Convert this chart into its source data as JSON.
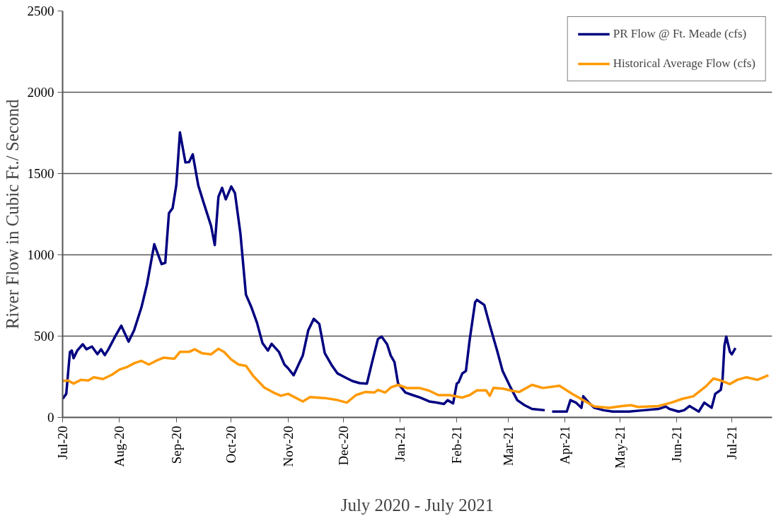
{
  "chart_data": {
    "type": "line",
    "xlabel": "July 2020 - July 2021",
    "ylabel": "River Flow in Cubic Ft./ Second",
    "xlim": [
      "2020-07-01",
      "2021-07-23"
    ],
    "ylim": [
      0,
      2500
    ],
    "yticks": [
      0,
      500,
      1000,
      1500,
      2000,
      2500
    ],
    "xticks": [
      {
        "value": "2020-07-01",
        "label": "Jul-20"
      },
      {
        "value": "2020-08-01",
        "label": "Aug-20"
      },
      {
        "value": "2020-09-01",
        "label": "Sep-20"
      },
      {
        "value": "2020-10-01",
        "label": "Oct-20"
      },
      {
        "value": "2020-11-01",
        "label": "Nov-20"
      },
      {
        "value": "2020-12-01",
        "label": "Dec-20"
      },
      {
        "value": "2021-01-01",
        "label": "Jan-21"
      },
      {
        "value": "2021-02-01",
        "label": "Feb-21"
      },
      {
        "value": "2021-03-01",
        "label": "Mar-21"
      },
      {
        "value": "2021-04-01",
        "label": "Apr-21"
      },
      {
        "value": "2021-05-01",
        "label": "May-21"
      },
      {
        "value": "2021-06-01",
        "label": "Jun-21"
      },
      {
        "value": "2021-07-01",
        "label": "Jul-21"
      }
    ],
    "grid": "y",
    "legend": "top right",
    "marker": "none",
    "line_style": "solid",
    "series": [
      {
        "name": "PR Flow @ Ft. Meade (cfs)",
        "color": "#000080",
        "x": [
          "2020-07-01",
          "2020-07-03",
          "2020-07-05",
          "2020-07-06",
          "2020-07-07",
          "2020-07-09",
          "2020-07-12",
          "2020-07-14",
          "2020-07-17",
          "2020-07-20",
          "2020-07-22",
          "2020-07-24",
          "2020-07-26",
          "2020-07-30",
          "2020-08-02",
          "2020-08-06",
          "2020-08-09",
          "2020-08-13",
          "2020-08-16",
          "2020-08-20",
          "2020-08-24",
          "2020-08-26",
          "2020-08-28",
          "2020-08-30",
          "2020-09-01",
          "2020-09-03",
          "2020-09-06",
          "2020-09-08",
          "2020-09-10",
          "2020-09-13",
          "2020-09-16",
          "2020-09-20",
          "2020-09-22",
          "2020-09-24",
          "2020-09-26",
          "2020-09-28",
          "2020-10-01",
          "2020-10-03",
          "2020-10-06",
          "2020-10-09",
          "2020-10-12",
          "2020-10-15",
          "2020-10-18",
          "2020-10-21",
          "2020-10-23",
          "2020-10-27",
          "2020-10-30",
          "2020-11-01",
          "2020-11-04",
          "2020-11-07",
          "2020-11-09",
          "2020-11-12",
          "2020-11-15",
          "2020-11-18",
          "2020-11-21",
          "2020-11-25",
          "2020-11-28",
          "2020-12-02",
          "2020-12-06",
          "2020-12-10",
          "2020-12-14",
          "2020-12-17",
          "2020-12-20",
          "2020-12-22",
          "2020-12-25",
          "2020-12-27",
          "2020-12-29",
          "2020-12-31",
          "2021-01-04",
          "2021-01-08",
          "2021-01-12",
          "2021-01-17",
          "2021-01-21",
          "2021-01-25",
          "2021-01-27",
          "2021-01-30",
          "2021-02-01",
          "2021-02-02",
          "2021-02-04",
          "2021-02-06",
          "2021-02-08",
          "2021-02-11",
          "2021-02-12",
          "2021-02-16",
          "2021-02-19",
          "2021-02-23",
          "2021-02-26",
          "2021-03-02",
          "2021-03-06",
          "2021-03-10",
          "2021-03-14",
          "2021-03-21",
          "2021-03-23",
          "2021-03-25",
          "2021-04-02",
          "2021-04-04",
          "2021-04-07",
          "2021-04-10",
          "2021-04-11",
          "2021-04-14",
          "2021-04-17",
          "2021-04-22",
          "2021-04-27",
          "2021-05-06",
          "2021-05-14",
          "2021-05-22",
          "2021-05-26",
          "2021-05-28",
          "2021-06-02",
          "2021-06-05",
          "2021-06-08",
          "2021-06-13",
          "2021-06-16",
          "2021-06-20",
          "2021-06-22",
          "2021-06-25",
          "2021-06-26",
          "2021-06-27",
          "2021-06-28",
          "2021-06-30",
          "2021-07-01",
          "2021-07-03"
        ],
        "values": [
          114,
          145,
          403,
          411,
          364,
          411,
          450,
          419,
          436,
          389,
          419,
          383,
          419,
          505,
          564,
          466,
          536,
          677,
          817,
          1065,
          943,
          951,
          1256,
          1287,
          1427,
          1753,
          1568,
          1571,
          1618,
          1427,
          1318,
          1177,
          1060,
          1357,
          1412,
          1341,
          1420,
          1380,
          1130,
          755,
          677,
          583,
          458,
          411,
          453,
          403,
          325,
          302,
          259,
          333,
          380,
          536,
          606,
          575,
          395,
          317,
          270,
          247,
          224,
          211,
          208,
          348,
          482,
          497,
          450,
          380,
          341,
          208,
          153,
          137,
          122,
          98,
          91,
          83,
          106,
          86,
          208,
          216,
          270,
          286,
          474,
          708,
          723,
          692,
          567,
          411,
          286,
          192,
          106,
          75,
          52,
          44,
          null,
          36,
          36,
          106,
          91,
          59,
          130,
          91,
          59,
          44,
          36,
          36,
          44,
          52,
          67,
          52,
          36,
          44,
          70,
          36,
          91,
          59,
          145,
          169,
          239,
          442,
          497,
          403,
          388,
          427
        ]
      },
      {
        "name": "Historical Average Flow (cfs)",
        "color": "#ff9900",
        "x": [
          "2020-07-01",
          "2020-07-04",
          "2020-07-07",
          "2020-07-11",
          "2020-07-15",
          "2020-07-18",
          "2020-07-23",
          "2020-07-28",
          "2020-08-01",
          "2020-08-05",
          "2020-08-09",
          "2020-08-13",
          "2020-08-17",
          "2020-08-21",
          "2020-08-25",
          "2020-08-31",
          "2020-09-03",
          "2020-09-08",
          "2020-09-11",
          "2020-09-15",
          "2020-09-20",
          "2020-09-24",
          "2020-09-27",
          "2020-10-01",
          "2020-10-05",
          "2020-10-09",
          "2020-10-13",
          "2020-10-19",
          "2020-10-24",
          "2020-10-28",
          "2020-11-01",
          "2020-11-09",
          "2020-11-13",
          "2020-11-21",
          "2020-11-27",
          "2020-12-03",
          "2020-12-08",
          "2020-12-13",
          "2020-12-18",
          "2020-12-20",
          "2020-12-24",
          "2020-12-27",
          "2020-12-31",
          "2021-01-05",
          "2021-01-12",
          "2021-01-17",
          "2021-01-22",
          "2021-01-28",
          "2021-02-04",
          "2021-02-08",
          "2021-02-12",
          "2021-02-17",
          "2021-02-19",
          "2021-02-21",
          "2021-02-26",
          "2021-03-03",
          "2021-03-07",
          "2021-03-14",
          "2021-03-20",
          "2021-03-29",
          "2021-04-05",
          "2021-04-11",
          "2021-04-17",
          "2021-04-25",
          "2021-05-02",
          "2021-05-07",
          "2021-05-11",
          "2021-05-22",
          "2021-05-29",
          "2021-06-04",
          "2021-06-10",
          "2021-06-17",
          "2021-06-21",
          "2021-06-25",
          "2021-06-30",
          "2021-07-04",
          "2021-07-09",
          "2021-07-15",
          "2021-07-21"
        ],
        "values": [
          224,
          227,
          208,
          231,
          227,
          247,
          236,
          263,
          294,
          309,
          333,
          348,
          325,
          348,
          367,
          361,
          403,
          403,
          419,
          395,
          388,
          422,
          403,
          356,
          325,
          317,
          255,
          184,
          153,
          133,
          145,
          98,
          125,
          119,
          109,
          91,
          137,
          156,
          153,
          169,
          153,
          184,
          200,
          180,
          180,
          164,
          137,
          137,
          122,
          137,
          166,
          166,
          133,
          181,
          177,
          164,
          156,
          200,
          181,
          195,
          145,
          106,
          67,
          59,
          70,
          75,
          64,
          70,
          91,
          114,
          130,
          192,
          239,
          227,
          205,
          231,
          247,
          231,
          259
        ]
      }
    ]
  }
}
